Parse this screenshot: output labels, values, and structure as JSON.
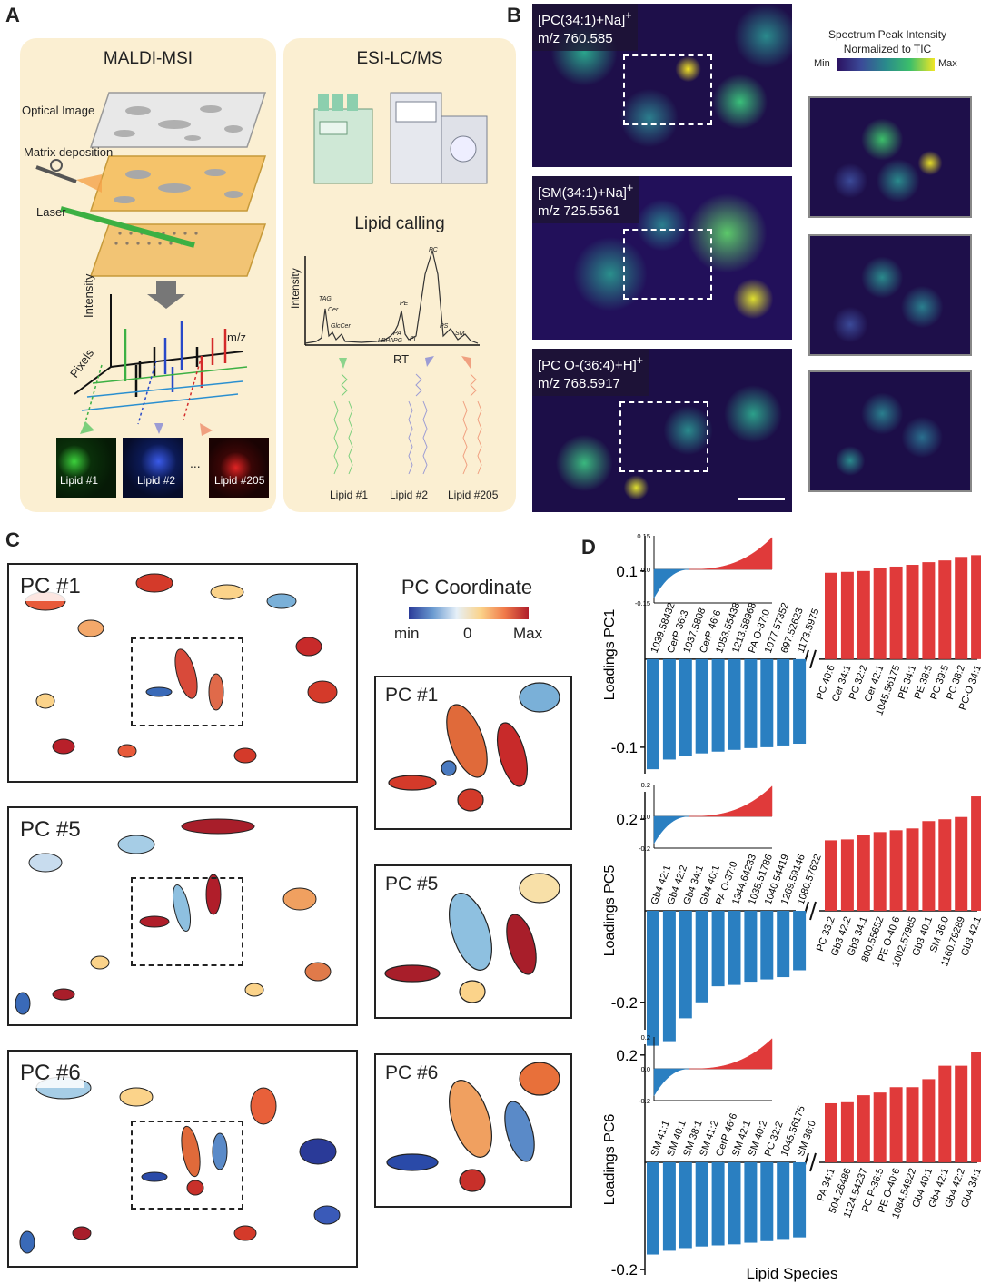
{
  "panels": {
    "a": "A",
    "b": "B",
    "c": "C",
    "d": "D"
  },
  "panel_a": {
    "maldi_title": "MALDI-MSI",
    "esi_title": "ESI-LC/MS",
    "optical": "Optical Image",
    "matrix": "Matrix deposition",
    "laser": "Laser",
    "intensity": "Intensity",
    "mz": "m/z",
    "pixels": "Pixels",
    "lipid_calling": "Lipid calling",
    "rt": "RT",
    "peaks": [
      "TAG",
      "Cer",
      "GlcCer",
      "LBPA",
      "PA",
      "PG",
      "PE",
      "PI",
      "PC",
      "PS",
      "SM"
    ],
    "maldi_lipids": [
      "Lipid #1",
      "Lipid #2",
      "...",
      "Lipid #205"
    ],
    "esi_lipids": [
      "Lipid #1",
      "Lipid #2",
      "Lipid #205"
    ]
  },
  "panel_b": {
    "colorbar_title_1": "Spectrum Peak Intensity",
    "colorbar_title_2": "Normalized to TIC",
    "min": "Min",
    "max": "Max",
    "ions": [
      {
        "name": "[PC(34:1)+Na]",
        "sup": "+",
        "mz": "m/z 760.585"
      },
      {
        "name": "[SM(34:1)+Na]",
        "sup": "+",
        "mz": "m/z 725.5561"
      },
      {
        "name": "[PC O-(36:4)+H]",
        "sup": "+",
        "mz": "m/z 768.5917"
      }
    ]
  },
  "panel_c": {
    "legend_title": "PC Coordinate",
    "min": "min",
    "zero": "0",
    "max": "Max",
    "components": [
      "PC #1",
      "PC #5",
      "PC #6"
    ]
  },
  "panel_d": {
    "xlabel": "Lipid Species",
    "colors": {
      "neg": "#2a7fc1",
      "pos": "#e03a3a"
    },
    "chart_data": [
      {
        "type": "bar",
        "title": "",
        "ylabel": "Loadings PC1",
        "ylim": [
          -0.13,
          0.14
        ],
        "yticks": [
          0.1,
          -0.1
        ],
        "ytick_labels": [
          "0.1",
          "-0.1"
        ],
        "neg_categories": [
          "1039.58432",
          "CerP 36:3",
          "1037.5808",
          "CerP 46:6",
          "1053.55438",
          "1213.58968",
          "PA O-37:0",
          "1077.57352",
          "697.52623",
          "1173.5975"
        ],
        "neg_values": [
          -0.125,
          -0.114,
          -0.11,
          -0.107,
          -0.105,
          -0.103,
          -0.101,
          -0.1,
          -0.098,
          -0.096
        ],
        "pos_categories": [
          "PC 40:6",
          "Cer 34:1",
          "PC 32:2",
          "Cer 42:1",
          "1045.56175",
          "PE 34:1",
          "PE 38:5",
          "PC 39:5",
          "PC 38:2",
          "PC-O 34:1"
        ],
        "pos_values": [
          0.098,
          0.099,
          0.1,
          0.103,
          0.105,
          0.107,
          0.11,
          0.112,
          0.116,
          0.118
        ],
        "inset": {
          "ylim": [
            -0.15,
            0.15
          ],
          "ytick_labels": [
            "0.15",
            "0.0",
            "-0.15"
          ]
        }
      },
      {
        "type": "bar",
        "title": "",
        "ylabel": "Loadings PC5",
        "ylim": [
          -0.26,
          0.26
        ],
        "yticks": [
          0.2,
          -0.2
        ],
        "ytick_labels": [
          "0.2",
          "-0.2"
        ],
        "neg_categories": [
          "Gb4 42:1",
          "Gb4 42:2",
          "Gb4 34:1",
          "Gb4 40:1",
          "PA O-37:0",
          "1344.64233",
          "1035.51786",
          "1040.54419",
          "1269.59146",
          "1080.57622"
        ],
        "neg_values": [
          -0.295,
          -0.285,
          -0.235,
          -0.2,
          -0.165,
          -0.162,
          -0.155,
          -0.15,
          -0.145,
          -0.13
        ],
        "pos_categories": [
          "PC 33:2",
          "Gb3 42:2",
          "Gb3 34:1",
          "800.55652",
          "PE O-40:6",
          "1002.57985",
          "Gb3 40:1",
          "SM 36:0",
          "1160.79289",
          "Gb3 42:1"
        ],
        "pos_values": [
          0.154,
          0.156,
          0.165,
          0.172,
          0.176,
          0.18,
          0.196,
          0.2,
          0.205,
          0.25
        ],
        "inset": {
          "ylim": [
            -0.2,
            0.2
          ],
          "ytick_labels": [
            "0.2",
            "0.0",
            "-0.2"
          ]
        }
      },
      {
        "type": "bar",
        "title": "",
        "ylabel": "Loadings PC6",
        "ylim": [
          -0.21,
          0.22
        ],
        "yticks": [
          0.2,
          -0.2
        ],
        "ytick_labels": [
          "0.2",
          "-0.2"
        ],
        "neg_categories": [
          "SM 41:1",
          "SM 40:1",
          "SM 38:1",
          "SM 41:2",
          "CerP 46:6",
          "SM 42:1",
          "SM 40:2",
          "PC 32:2",
          "1045.56175",
          "SM 36:0"
        ],
        "neg_values": [
          -0.172,
          -0.165,
          -0.16,
          -0.157,
          -0.155,
          -0.153,
          -0.15,
          -0.147,
          -0.143,
          -0.14
        ],
        "pos_categories": [
          "PA 34:1",
          "504.26486",
          "1124.54237",
          "PC P-36:5",
          "PE O-40:6",
          "1084.54922",
          "Gb4 40:1",
          "Gb4 42:1",
          "Gb4 42:2",
          "Gb4 34:1"
        ],
        "pos_values": [
          0.11,
          0.112,
          0.125,
          0.13,
          0.14,
          0.14,
          0.155,
          0.18,
          0.18,
          0.205
        ],
        "inset": {
          "ylim": [
            -0.2,
            0.2
          ],
          "ytick_labels": [
            "0.2",
            "0.0",
            "-0.2"
          ]
        }
      }
    ]
  }
}
